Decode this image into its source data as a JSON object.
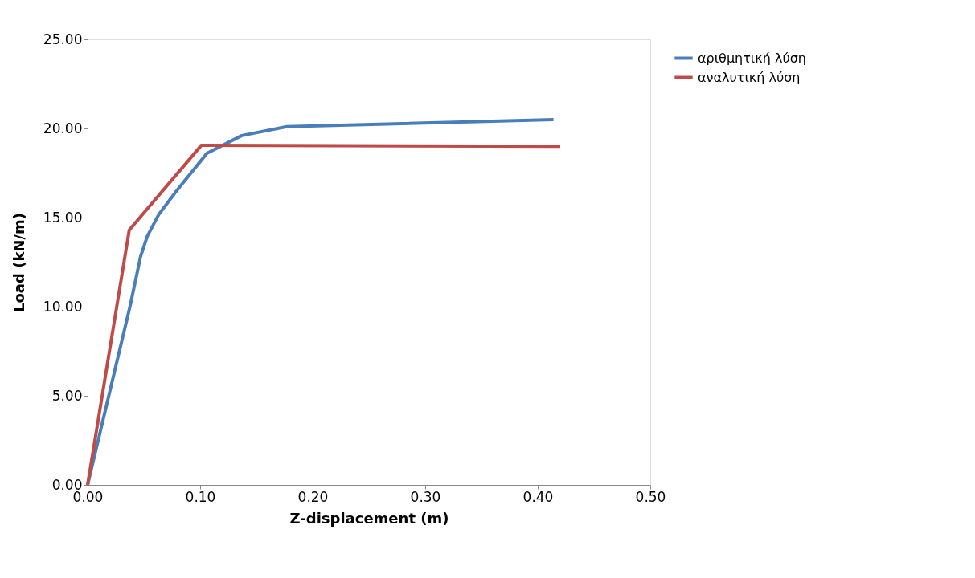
{
  "chart_data": {
    "type": "line",
    "xlabel": "Z-displacement (m)",
    "ylabel": "Load (kN/m)",
    "xlim": [
      0,
      0.5
    ],
    "xticks": [
      {
        "value": 0,
        "label": "0.00"
      },
      {
        "value": 0.1,
        "label": "0.10"
      },
      {
        "value": 0.2,
        "label": "0.20"
      },
      {
        "value": 0.3,
        "label": "0.30"
      },
      {
        "value": 0.4,
        "label": "0.40"
      },
      {
        "value": 0.5,
        "label": "0.50"
      }
    ],
    "ylim": [
      0,
      25
    ],
    "yticks": [
      {
        "value": 0,
        "label": "0.00"
      },
      {
        "value": 5,
        "label": "5.00"
      },
      {
        "value": 10,
        "label": "10.00"
      },
      {
        "value": 15,
        "label": "15.00"
      },
      {
        "value": 20,
        "label": "20.00"
      },
      {
        "value": 25,
        "label": "25.00"
      }
    ],
    "grid": false,
    "legend": "right",
    "marker": "none",
    "line_style": "solid",
    "series": [
      {
        "name": "αριθμητική λύση",
        "color": "#4a7ebb",
        "x": [
          0,
          0.038,
          0.047,
          0.053,
          0.063,
          0.079,
          0.106,
          0.137,
          0.177,
          0.414
        ],
        "values": [
          0,
          10.1,
          12.8,
          13.95,
          15.15,
          16.5,
          18.6,
          19.6,
          20.1,
          20.5
        ]
      },
      {
        "name": "αναλυτική λύση",
        "color": "#be4b48",
        "x": [
          0,
          0.037,
          0.101,
          0.42
        ],
        "values": [
          0,
          14.3,
          19.05,
          19.0
        ]
      }
    ]
  }
}
